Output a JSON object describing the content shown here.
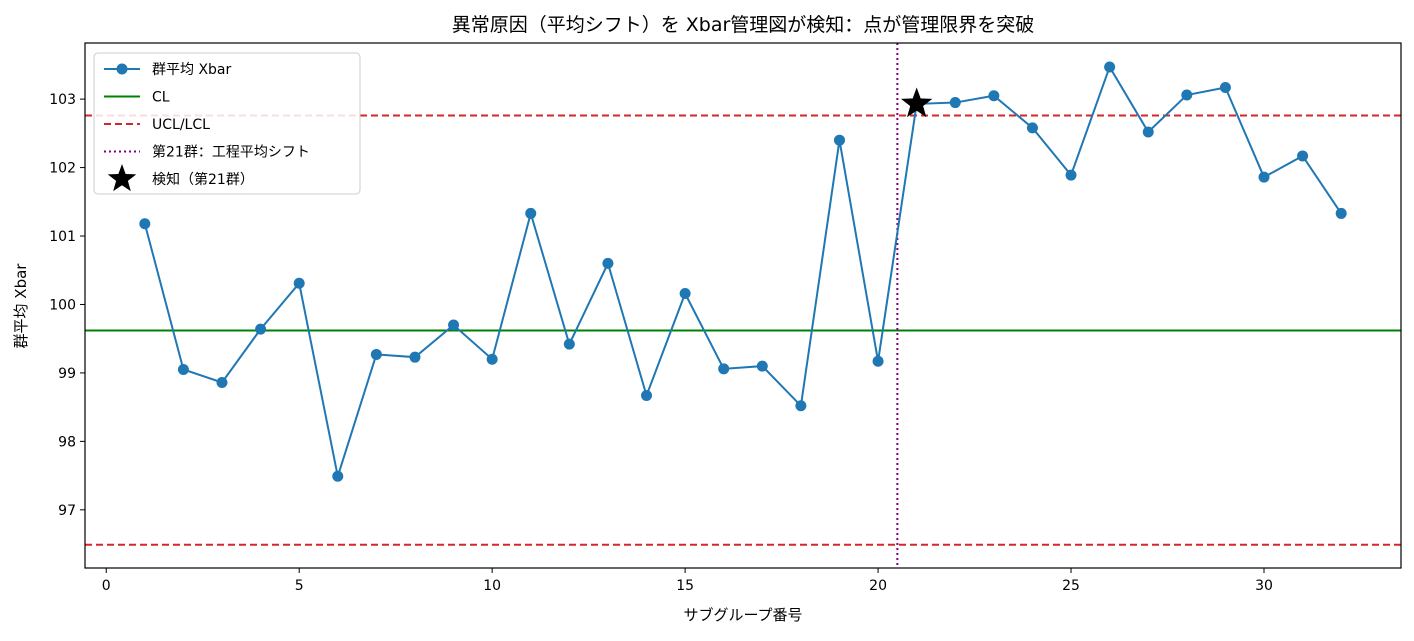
{
  "chart_data": {
    "type": "line",
    "title": "異常原因（平均シフト）を Xbar管理図が検知：点が管理限界を突破",
    "xlabel": "サブグループ番号",
    "ylabel": "群平均 Xbar",
    "xlim": [
      -0.55,
      33.55
    ],
    "ylim": [
      96.15,
      103.82
    ],
    "xticks": [
      0,
      5,
      10,
      15,
      20,
      25,
      30
    ],
    "yticks": [
      97,
      98,
      99,
      100,
      101,
      102,
      103
    ],
    "grid": false,
    "legend_position": "upper-left",
    "series": [
      {
        "name": "群平均 Xbar",
        "color": "#1f77b4",
        "style": "line-marker",
        "x": [
          1,
          2,
          3,
          4,
          5,
          6,
          7,
          8,
          9,
          10,
          11,
          12,
          13,
          14,
          15,
          16,
          17,
          18,
          19,
          20,
          21,
          22,
          23,
          24,
          25,
          26,
          27,
          28,
          29,
          30,
          31,
          32
        ],
        "y": [
          101.18,
          99.05,
          98.86,
          99.64,
          100.31,
          97.49,
          99.27,
          99.23,
          99.7,
          99.2,
          101.33,
          99.42,
          100.6,
          98.67,
          100.16,
          99.06,
          99.1,
          98.52,
          102.4,
          99.17,
          102.93,
          102.95,
          103.05,
          102.58,
          101.89,
          103.47,
          102.52,
          103.06,
          103.17,
          101.86,
          102.17,
          101.33
        ]
      },
      {
        "name": "CL",
        "color": "#008000",
        "style": "hline",
        "y": 99.62
      },
      {
        "name": "UCL/LCL",
        "color": "#d62728",
        "style": "hline-dashed",
        "y": [
          102.76,
          96.49
        ]
      },
      {
        "name": "第21群：工程平均シフト",
        "color": "#800080",
        "style": "vline-dotted",
        "x": 20.5
      },
      {
        "name": "検知（第21群）",
        "color": "#000000",
        "style": "star-marker",
        "x": 21,
        "y": 102.93
      }
    ]
  }
}
